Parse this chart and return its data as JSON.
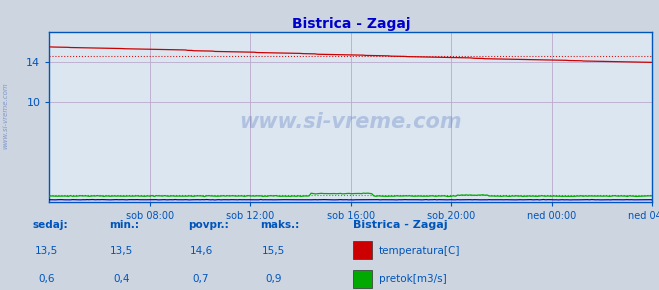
{
  "title": "Bistrica - Zagaj",
  "bg_color": "#ccd5e0",
  "plot_bg_color": "#dce6f0",
  "grid_color": "#bbaacc",
  "title_color": "#0000cc",
  "tick_color": "#0055bb",
  "watermark": "www.si-vreme.com",
  "xlabel_ticks": [
    "sob 08:00",
    "sob 12:00",
    "sob 16:00",
    "sob 20:00",
    "ned 00:00",
    "ned 04:00"
  ],
  "ylim": [
    0,
    17
  ],
  "yticks": [
    10,
    14
  ],
  "temp_color": "#cc0000",
  "flow_color": "#00aa00",
  "height_color": "#0000cc",
  "temp_avg": 14.6,
  "flow_avg": 0.7,
  "legend_title": "Bistrica - Zagaj",
  "legend_items": [
    "temperatura[C]",
    "pretok[m3/s]"
  ],
  "legend_colors": [
    "#cc0000",
    "#00aa00"
  ],
  "table_headers": [
    "sedaj:",
    "min.:",
    "povpr.:",
    "maks.:"
  ],
  "table_temp": [
    "13,5",
    "13,5",
    "14,6",
    "15,5"
  ],
  "table_flow": [
    "0,6",
    "0,4",
    "0,7",
    "0,9"
  ],
  "n_points": 289,
  "x_max": 288,
  "x_tick_positions": [
    48,
    96,
    144,
    192,
    240,
    288
  ]
}
